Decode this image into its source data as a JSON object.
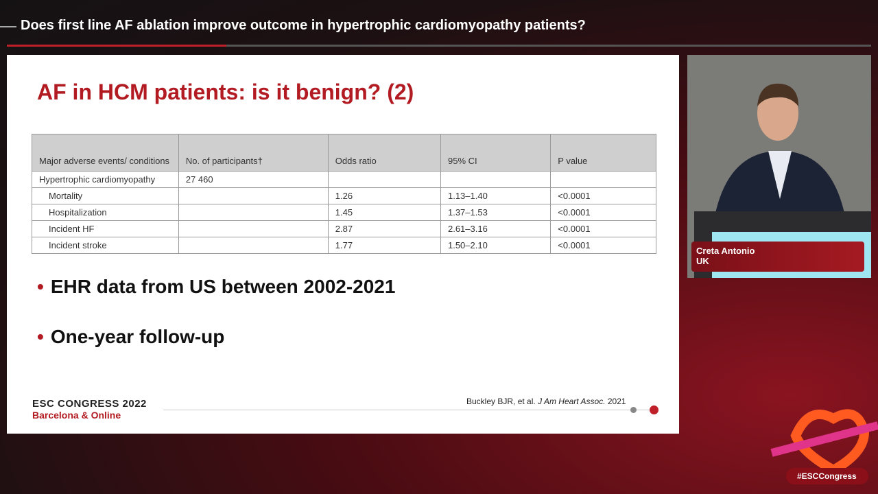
{
  "header": {
    "title": "Does first line AF ablation improve outcome in hypertrophic cardiomyopathy patients?"
  },
  "slide": {
    "title": "AF in HCM patients: is it benign? (2)",
    "table": {
      "headers": [
        "Major adverse events/ conditions",
        "No. of participants†",
        "Odds ratio",
        "95% CI",
        "P value"
      ],
      "rows": [
        [
          "Hypertrophic cardiomyopathy",
          "27 460",
          null,
          null,
          null
        ],
        [
          "Mortality",
          null,
          "1.26",
          "1.13–1.40",
          "<0.0001"
        ],
        [
          "Hospitalization",
          null,
          "1.45",
          "1.37–1.53",
          "<0.0001"
        ],
        [
          "Incident HF",
          null,
          "2.87",
          "2.61–3.16",
          "<0.0001"
        ],
        [
          "Incident stroke",
          null,
          "1.77",
          "1.50–2.10",
          "<0.0001"
        ]
      ]
    },
    "bullets": [
      "EHR data from US between 2002-2021",
      "One-year follow-up"
    ],
    "footer": {
      "congress": "ESC CONGRESS 2022",
      "location": "Barcelona & Online",
      "citation_authors": "Buckley BJR, et al.",
      "citation_journal": "J Am Heart Assoc.",
      "citation_year": "2021"
    }
  },
  "speaker": {
    "name": "Creta Antonio",
    "country": "UK"
  },
  "hashtag": "#ESCCongress"
}
